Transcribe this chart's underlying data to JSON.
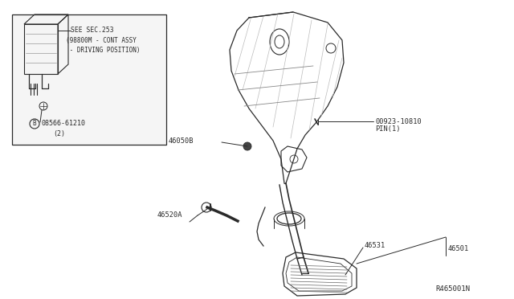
{
  "bg_color": "#ffffff",
  "line_color": "#2a2a2a",
  "text_color": "#2a2a2a",
  "fig_width": 6.4,
  "fig_height": 3.72,
  "dpi": 100,
  "diagram_ref": "R465001N",
  "box_note_line1": "SEE SEC.253",
  "box_note_line2": "(98800M - CONT ASSY",
  "box_note_line3": " - DRIVING POSITION)",
  "part6_prefix": "B",
  "part6_id": "08566-61210",
  "part6_sub": "(2)",
  "label_pin": "00923-10810",
  "label_pin_sub": "PIN(1)",
  "label_46050B": "46050B",
  "label_46520A": "46520A",
  "label_46501": "46501",
  "label_46531": "46531"
}
